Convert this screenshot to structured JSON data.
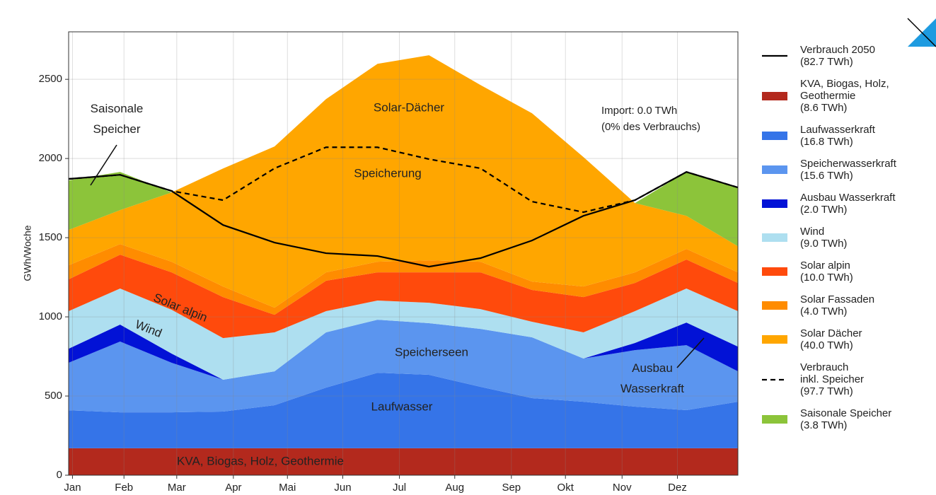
{
  "chart_data": {
    "type": "area",
    "stacked": true,
    "y_label": "GWh/Woche",
    "x": [
      0,
      4,
      8,
      12,
      16,
      20,
      24,
      28,
      32,
      36,
      40,
      44,
      48,
      52
    ],
    "xlim": [
      0,
      52
    ],
    "xticks": [
      {
        "value": 0.3,
        "label": "Jan"
      },
      {
        "value": 4.3,
        "label": "Feb"
      },
      {
        "value": 8.4,
        "label": "Mar"
      },
      {
        "value": 12.8,
        "label": "Apr"
      },
      {
        "value": 17,
        "label": "Mai"
      },
      {
        "value": 21.3,
        "label": "Jun"
      },
      {
        "value": 25.7,
        "label": "Jul"
      },
      {
        "value": 30,
        "label": "Aug"
      },
      {
        "value": 34.4,
        "label": "Sep"
      },
      {
        "value": 38.6,
        "label": "Okt"
      },
      {
        "value": 43,
        "label": "Nov"
      },
      {
        "value": 47.3,
        "label": "Dez"
      }
    ],
    "ylim": [
      0,
      2800
    ],
    "yticks": [
      0,
      500,
      1000,
      1500,
      2000,
      2500
    ],
    "grid": true,
    "legend": "right",
    "series": [
      {
        "name": "Verbrauch 2050\n(82.7 TWh)",
        "kind": "line",
        "style": "solid",
        "color": "#000000",
        "values": [
          1871,
          1897,
          1795,
          1580,
          1469,
          1402,
          1384,
          1317,
          1371,
          1482,
          1638,
          1737,
          1915,
          1817
        ]
      },
      {
        "name": "KVA, Biogas, Holz,\nGeothermie\n(8.6 TWh)",
        "kind": "area",
        "color": "#b3291d",
        "values": [
          170,
          170,
          170,
          170,
          170,
          170,
          170,
          170,
          170,
          170,
          170,
          170,
          170,
          170
        ]
      },
      {
        "name": "Laufwasserkraft\n(16.8 TWh)",
        "kind": "area",
        "color": "#3574e8",
        "values": [
          240,
          227,
          227,
          232,
          272,
          383,
          477,
          464,
          388,
          317,
          294,
          263,
          241,
          294
        ]
      },
      {
        "name": "Speicherwasserkraft\n(15.6 TWh)",
        "kind": "area",
        "color": "#5b95ef",
        "values": [
          300,
          447,
          313,
          201,
          214,
          349,
          335,
          326,
          366,
          384,
          273,
          357,
          410,
          192
        ]
      },
      {
        "name": "Ausbau Wasserkraft\n(2.0 TWh)",
        "kind": "area",
        "color": "#0212d6",
        "values": [
          89,
          107,
          58,
          0,
          0,
          0,
          0,
          0,
          0,
          0,
          0,
          45,
          143,
          156
        ]
      },
      {
        "name": "Wind\n(9.0 TWh)",
        "kind": "area",
        "color": "#aedff0",
        "values": [
          237,
          228,
          277,
          263,
          246,
          134,
          121,
          129,
          125,
          98,
          165,
          201,
          215,
          224
        ]
      },
      {
        "name": "Solar alpin\n(10.0 TWh)",
        "kind": "area",
        "color": "#ff4a0c",
        "values": [
          201,
          214,
          236,
          259,
          111,
          192,
          178,
          192,
          232,
          201,
          223,
          178,
          183,
          178
        ]
      },
      {
        "name": "Solar Fassaden\n(4.0 TWh)",
        "kind": "area",
        "color": "#ff8c00",
        "values": [
          89,
          67,
          67,
          67,
          45,
          53,
          67,
          76,
          67,
          53,
          67,
          67,
          67,
          67
        ]
      },
      {
        "name": "Solar Dächer\n(40.0 TWh)",
        "kind": "area",
        "color": "#ffa600",
        "values": [
          223,
          214,
          438,
          745,
          1018,
          1094,
          1250,
          1295,
          1116,
          1063,
          817,
          438,
          209,
          165
        ]
      },
      {
        "name": "Verbrauch\ninkl. Speicher\n(97.7 TWh)",
        "kind": "line",
        "style": "dashed",
        "color": "#000000",
        "values": [
          1871,
          1897,
          1795,
          1737,
          1938,
          2071,
          2071,
          1996,
          1938,
          1728,
          1661,
          1737,
          1915,
          1817
        ]
      },
      {
        "name": "Saisonale Speicher\n(3.8 TWh)",
        "kind": "area",
        "color": "#8cc43a",
        "values": [
          313,
          241,
          0,
          0,
          0,
          0,
          0,
          0,
          0,
          0,
          0,
          0,
          277,
          371
        ]
      }
    ],
    "annotations": [
      "Solar-Dächer",
      "Speicherung",
      "Import: 0.0 TWh\n(0% des Verbrauchs)",
      "Saisonale\nSpeicher",
      "Solar alpin",
      "Wind",
      "Speicherseen",
      "Laufwasser",
      "KVA, Biogas, Holz, Geothermie",
      "Ausbau\nWasserkraft"
    ]
  }
}
